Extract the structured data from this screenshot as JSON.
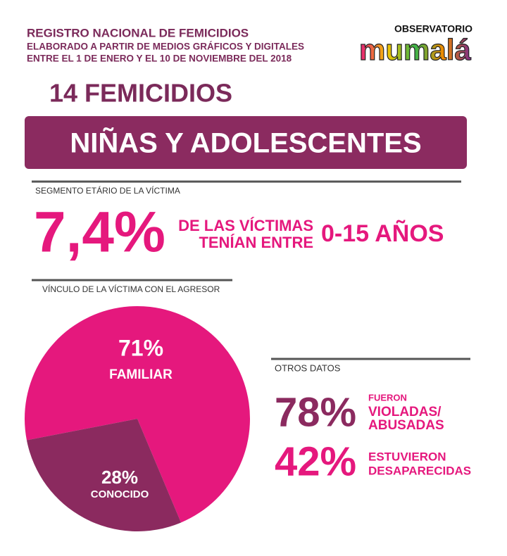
{
  "header": {
    "title": "REGISTRO NACIONAL DE FEMICIDIOS",
    "lines": [
      "ELABORADO A PARTIR DE MEDIOS GRÁFICOS Y DIGITALES",
      "ENTRE EL 1 DE ENERO Y EL 10 DE NOVIEMBRE DEL 2018"
    ]
  },
  "logo": {
    "top": "OBSERVATORIO",
    "name": "mumalá"
  },
  "headline": "14 FEMICIDIOS",
  "banner": "NIÑAS Y ADOLESCENTES",
  "age_segment": {
    "heading": "SEGMENTO ETÁRIO DE LA VÍCTIMA",
    "value": "7,4%",
    "text_lines": [
      "DE LAS VÍCTIMAS",
      "TENÍAN ENTRE"
    ],
    "range": "0-15 AÑOS"
  },
  "chart_data": {
    "type": "pie",
    "title": "VÍNCULO DE LA VÍCTIMA CON EL AGRESOR",
    "categories": [
      "FAMILIAR",
      "CONOCIDO"
    ],
    "values": [
      71,
      28
    ],
    "value_labels": [
      "71%",
      "28%"
    ],
    "colors": [
      "#e5187d",
      "#8b2a5f"
    ]
  },
  "other_data": {
    "heading": "OTROS DATOS",
    "items": [
      {
        "value": "78%",
        "lines": [
          "FUERON",
          "VIOLADAS/",
          "ABUSADAS"
        ]
      },
      {
        "value": "42%",
        "lines": [
          "ESTUVIERON",
          "DESAPARECIDAS"
        ]
      }
    ]
  }
}
